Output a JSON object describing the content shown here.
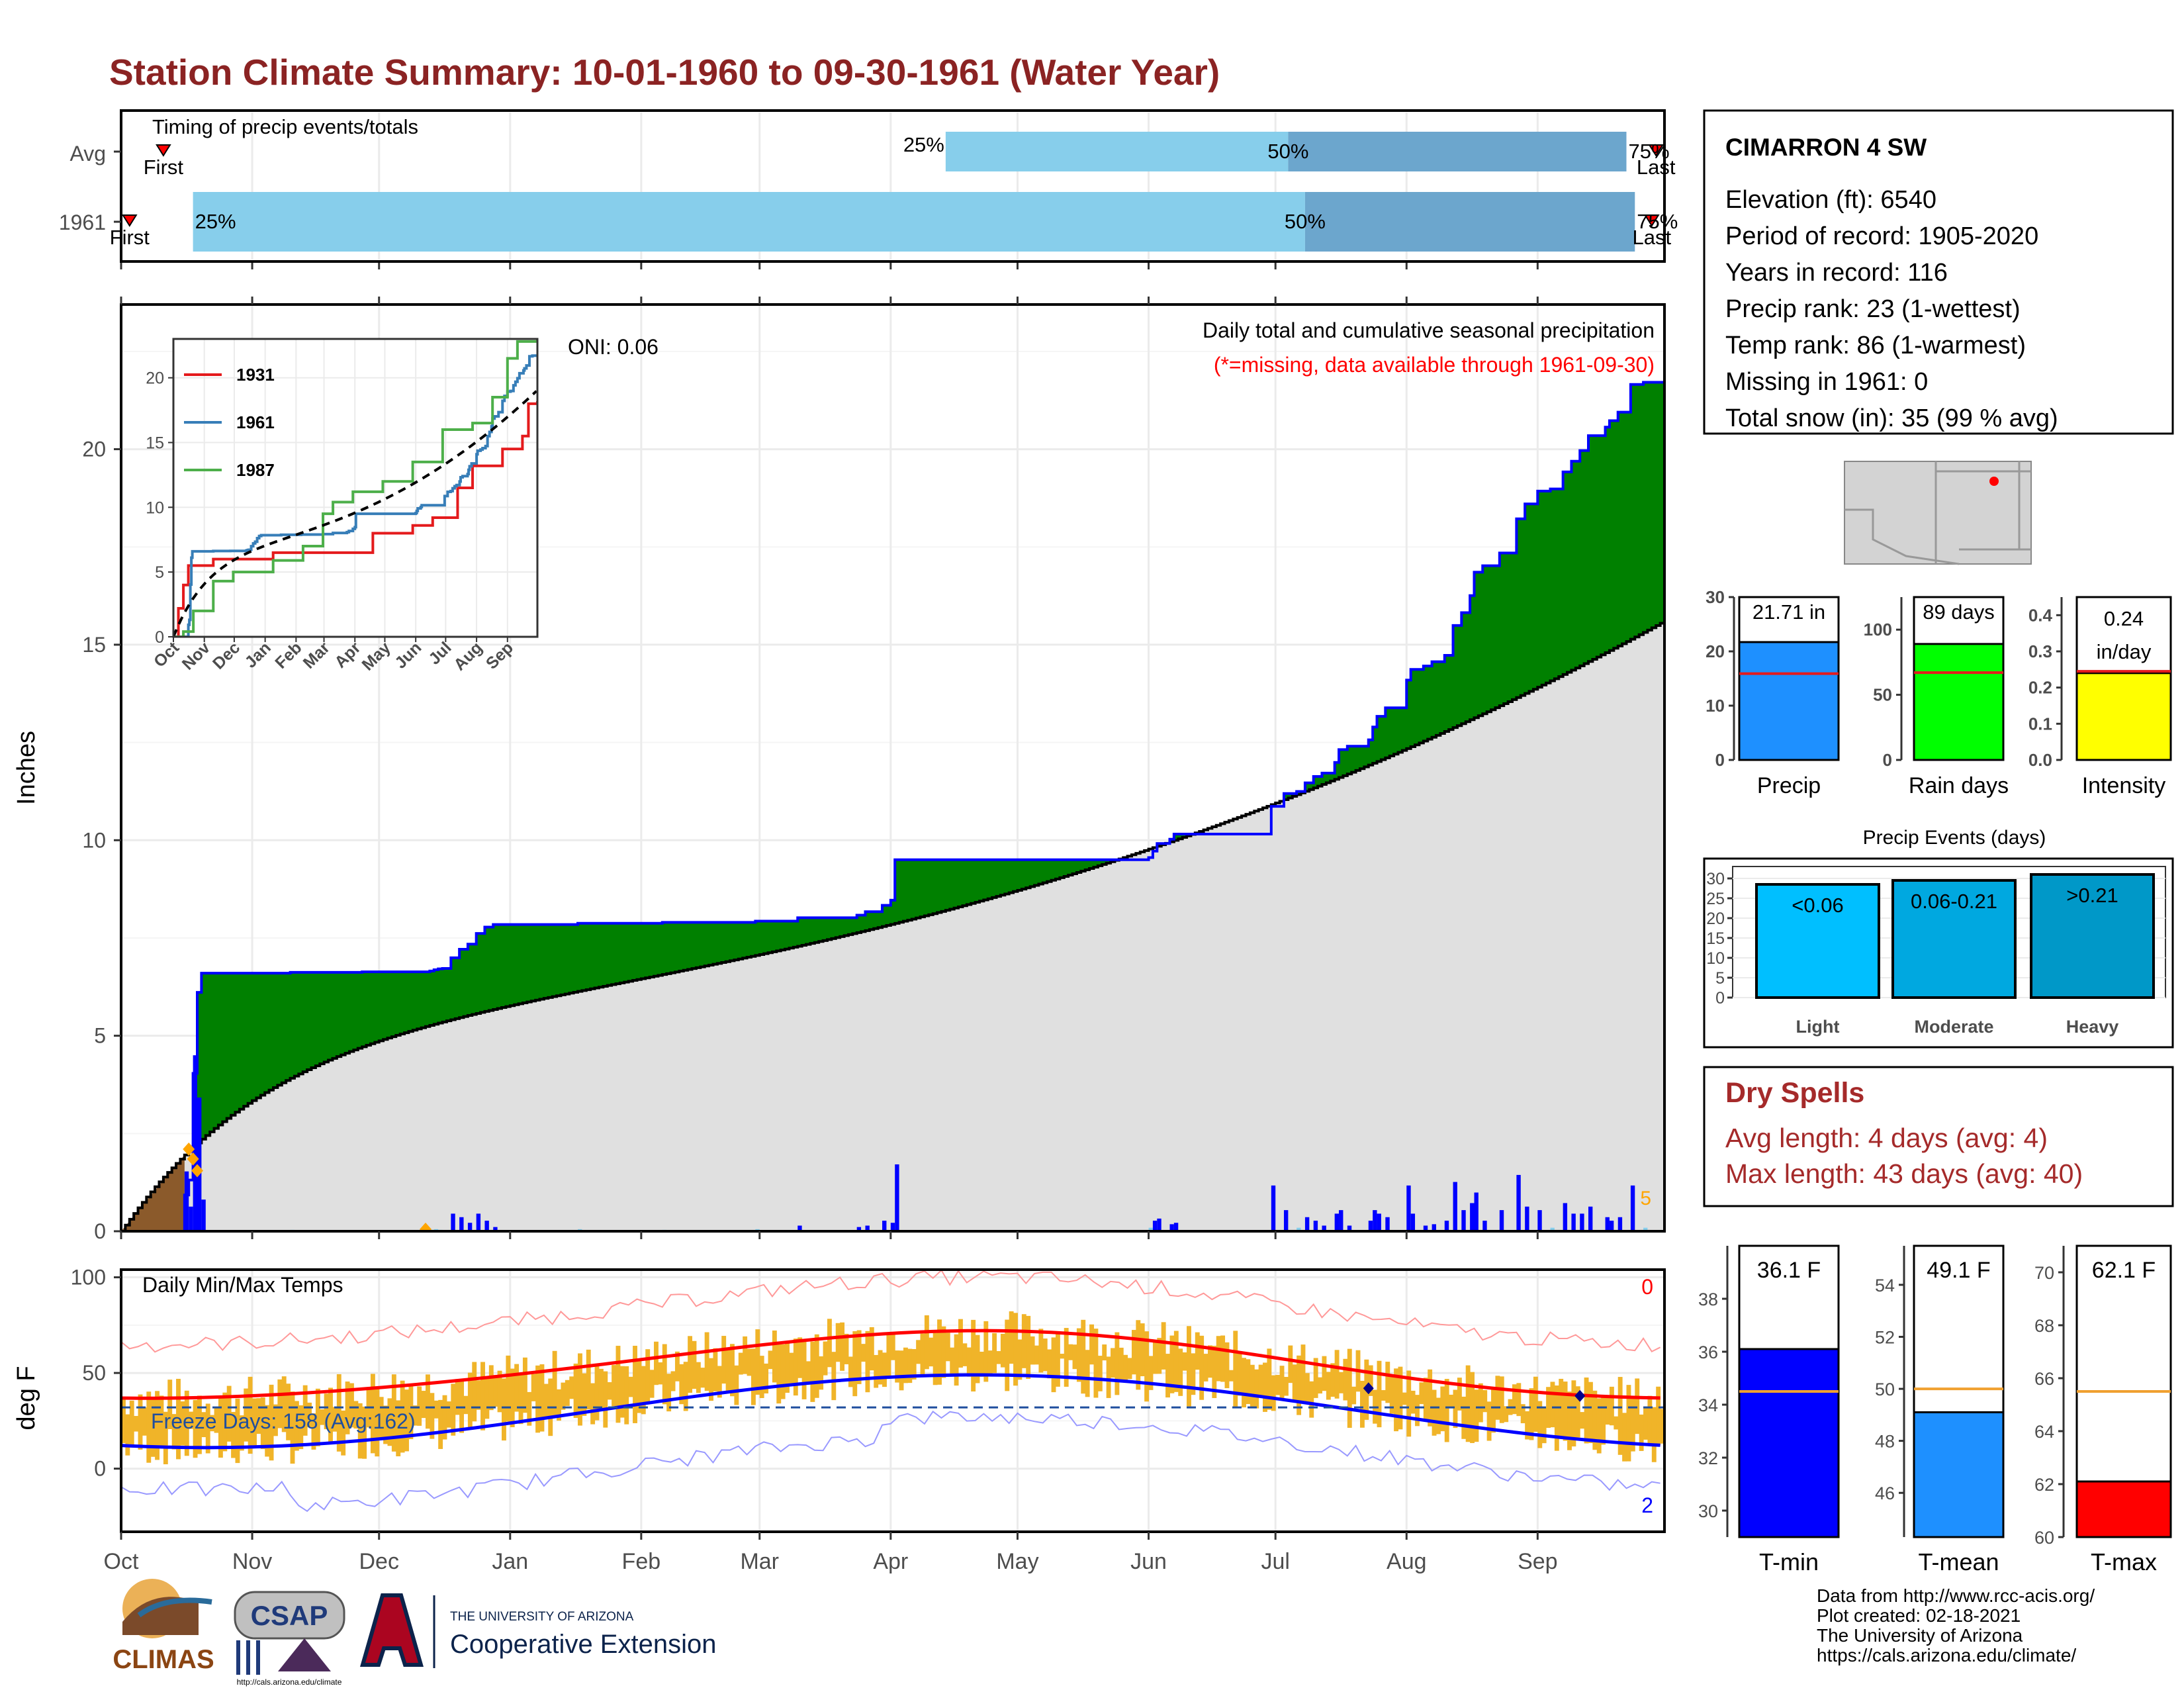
{
  "title": "Station Climate Summary: 10-01-1960 to 09-30-1961 (Water Year)",
  "timing": {
    "label": "Timing of precip events/totals",
    "rows": [
      {
        "name": "Avg",
        "first_day": 10,
        "last_day": 363,
        "q25": 195,
        "q50": 276,
        "q75": 356,
        "first_label": "First",
        "last_label": "Last",
        "p25": "25%",
        "p50": "50%",
        "p75": "75%"
      },
      {
        "name": "1961",
        "first_day": 2,
        "last_day": 362,
        "q25": 17,
        "q50": 280,
        "q75": 358,
        "first_label": "First",
        "last_label": "Last",
        "p25": "25%",
        "p50": "50%",
        "p75": "75%"
      }
    ]
  },
  "months": [
    "Oct",
    "Nov",
    "Dec",
    "Jan",
    "Feb",
    "Mar",
    "Apr",
    "May",
    "Jun",
    "Jul",
    "Aug",
    "Sep"
  ],
  "month_starts": [
    0,
    31,
    61,
    92,
    123,
    151,
    182,
    212,
    243,
    273,
    304,
    335
  ],
  "precip_panel": {
    "ylabel": "Inches",
    "yticks": [
      0,
      5,
      10,
      15,
      20
    ],
    "ylim": [
      0,
      23.7
    ],
    "note": "Daily total and cumulative seasonal precipitation",
    "missing_note": "(*=missing, data available through 1961-09-30)",
    "oni": "ONI: 0.06",
    "missing_count": "5",
    "colors": {
      "above": "#008000",
      "normal": "#e0e0e0",
      "line": "#0000ff",
      "normal_line": "#000000"
    }
  },
  "inset": {
    "years": [
      "1931",
      "1961",
      "1987"
    ],
    "colors": [
      "#e41a1c",
      "#377eb8",
      "#4daf4a"
    ],
    "yticks": [
      0,
      5,
      10,
      15,
      20
    ],
    "months": [
      "Oct",
      "Nov",
      "Dec",
      "Jan",
      "Feb",
      "Mar",
      "Apr",
      "May",
      "Jun",
      "Jul",
      "Aug",
      "Sep"
    ]
  },
  "temp_panel": {
    "ylabel": "deg F",
    "title": "Daily Min/Max Temps",
    "yticks": [
      0,
      50,
      100
    ],
    "freeze": "Freeze Days: 158 (Avg:162)",
    "max_count": "0",
    "min_count": "2"
  },
  "station": {
    "name": "CIMARRON 4 SW",
    "lines": [
      "Elevation (ft): 6540",
      "Period of record: 1905-2020",
      "Years in record: 116",
      "Precip rank: 23 (1-wettest)",
      "Temp rank: 86 (1-warmest)",
      "Missing in 1961: 0",
      "Total snow (in): 35 (99 % avg)"
    ]
  },
  "bars_precip": [
    {
      "label": "Precip",
      "value": 21.71,
      "text": "21.71 in",
      "avg": 15.9,
      "ticks": [
        0,
        10,
        20,
        30
      ],
      "max": 30,
      "color": "#1e90ff"
    },
    {
      "label": "Rain days",
      "value": 89,
      "text": "89 days",
      "avg": 67,
      "ticks": [
        0,
        50,
        100
      ],
      "max": 125,
      "color": "#00ff00"
    },
    {
      "label": "Intensity",
      "value": 0.24,
      "text": "0.24",
      "text2": "in/day",
      "avg": 0.245,
      "ticks": [
        0.0,
        0.1,
        0.2,
        0.3,
        0.4
      ],
      "max": 0.45,
      "color": "#ffff00"
    }
  ],
  "events": {
    "title": "Precip Events (days)",
    "ticks": [
      0,
      5,
      10,
      15,
      20,
      25,
      30
    ],
    "items": [
      {
        "cat": "Light",
        "label": "<0.06",
        "value": 28.5,
        "color": "#00bfff"
      },
      {
        "cat": "Moderate",
        "label": "0.06-0.21",
        "value": 29.5,
        "color": "#00a8e0"
      },
      {
        "cat": "Heavy",
        "label": ">0.21",
        "value": 31,
        "color": "#0098c8"
      }
    ]
  },
  "dry_spells": {
    "title": "Dry Spells",
    "avg": "Avg length: 4 days (avg: 4)",
    "max": "Max length: 43 days (avg: 40)"
  },
  "bars_temp": [
    {
      "label": "T-min",
      "value": 36.1,
      "text": "36.1 F",
      "avg": 34.5,
      "ticks": [
        30,
        32,
        34,
        36,
        38
      ],
      "min": 29,
      "max": 40,
      "color": "#0000ff"
    },
    {
      "label": "T-mean",
      "value": 49.1,
      "text": "49.1 F",
      "avg": 50.0,
      "ticks": [
        46,
        48,
        50,
        52,
        54
      ],
      "min": 44.3,
      "max": 55.5,
      "color": "#1e90ff"
    },
    {
      "label": "T-max",
      "value": 62.1,
      "text": "62.1 F",
      "avg": 65.5,
      "ticks": [
        60,
        62,
        64,
        66,
        68,
        70
      ],
      "min": 60,
      "max": 71,
      "color": "#ff0000"
    }
  ],
  "footer": {
    "lines": [
      "Data from http://www.rcc-acis.org/",
      "Plot created: 02-18-2021",
      "The University of Arizona",
      "https://cals.arizona.edu/climate/"
    ],
    "logo1": "CLIMAS",
    "logo2": "CSAP",
    "logo2_url": "http://cals.arizona.edu/climate",
    "logo3_line1": "THE UNIVERSITY OF ARIZONA",
    "logo3_line2": "Cooperative Extension"
  }
}
